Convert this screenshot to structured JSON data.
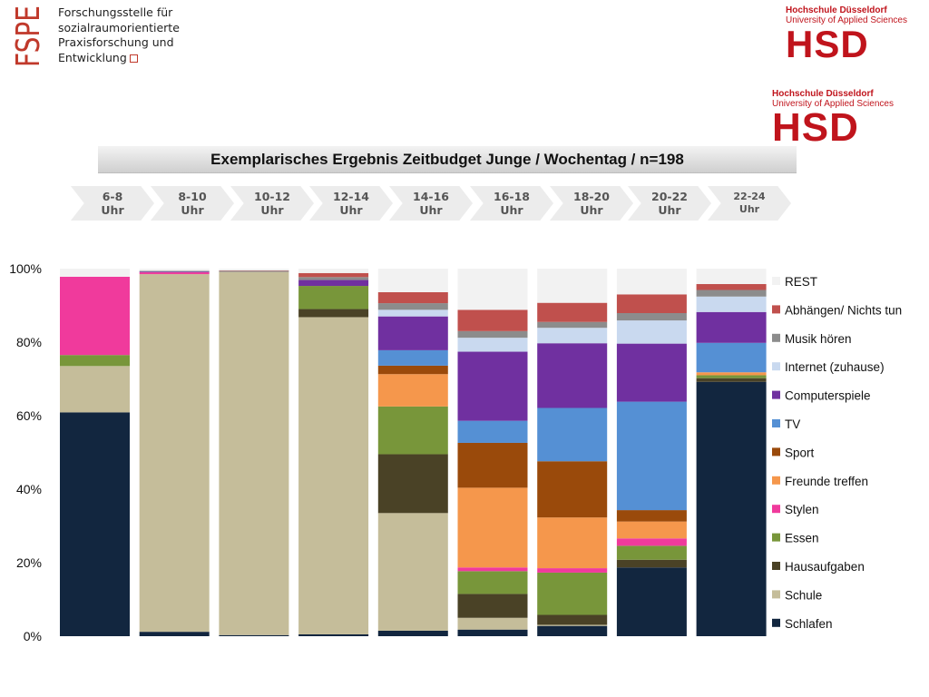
{
  "logos": {
    "espe_mark": "FSPE",
    "espe_lines": [
      "Forschungsstelle für",
      "sozialraumorientierte",
      "Praxisforschung und",
      "Entwicklung"
    ],
    "hsd_line1": "Hochschule Düsseldorf",
    "hsd_line2": "University of Applied Sciences",
    "hsd_word": "HSD"
  },
  "title": "Exemplarisches Ergebnis Zeitbudget Junge / Wochentag / n=198",
  "time_slots": [
    {
      "time": "6-8",
      "unit": "Uhr"
    },
    {
      "time": "8-10",
      "unit": "Uhr"
    },
    {
      "time": "10-12",
      "unit": "Uhr"
    },
    {
      "time": "12-14",
      "unit": "Uhr"
    },
    {
      "time": "14-16",
      "unit": "Uhr"
    },
    {
      "time": "16-18",
      "unit": "Uhr"
    },
    {
      "time": "18-20",
      "unit": "Uhr"
    },
    {
      "time": "20-22",
      "unit": "Uhr"
    },
    {
      "time": "22-24",
      "unit": "Uhr"
    }
  ],
  "chart_data": {
    "type": "bar",
    "stacked": true,
    "title": "",
    "xlabel": "",
    "ylabel": "",
    "ylim": [
      0,
      100
    ],
    "y_ticks": [
      "0%",
      "20%",
      "40%",
      "60%",
      "80%",
      "100%"
    ],
    "y_tick_values": [
      0,
      20,
      40,
      60,
      80,
      100
    ],
    "categories": [
      "6-8 Uhr",
      "8-10 Uhr",
      "10-12 Uhr",
      "12-14 Uhr",
      "14-16 Uhr",
      "16-18 Uhr",
      "18-20 Uhr",
      "20-22 Uhr",
      "22-24 Uhr"
    ],
    "legend_position": "right",
    "grid": false,
    "series": [
      {
        "name": "Schlafen",
        "color": "#12263f",
        "values": [
          60.9,
          1.2,
          0.3,
          0.5,
          1.5,
          1.8,
          2.8,
          18.7,
          69.2
        ]
      },
      {
        "name": "Schule",
        "color": "#c5bd9a",
        "values": [
          12.6,
          97.3,
          98.8,
          86.3,
          32.0,
          3.2,
          0.3,
          0.0,
          0.0
        ]
      },
      {
        "name": "Hausaufgaben",
        "color": "#4a4226",
        "values": [
          0.0,
          0.0,
          0.0,
          2.2,
          16.0,
          6.5,
          2.7,
          2.1,
          1.0
        ]
      },
      {
        "name": "Essen",
        "color": "#78963a",
        "values": [
          3.0,
          0.0,
          0.0,
          6.3,
          13.0,
          6.2,
          11.5,
          3.8,
          0.8
        ]
      },
      {
        "name": "Stylen",
        "color": "#f03a9c",
        "values": [
          21.3,
          0.5,
          0.0,
          0.0,
          0.0,
          1.0,
          1.2,
          2.0,
          0.0
        ]
      },
      {
        "name": "Freunde treffen",
        "color": "#f5974c",
        "values": [
          0.0,
          0.0,
          0.0,
          0.0,
          8.8,
          21.7,
          13.8,
          4.6,
          0.8
        ]
      },
      {
        "name": "Sport",
        "color": "#9a4a0b",
        "values": [
          0.0,
          0.0,
          0.0,
          0.0,
          2.3,
          12.2,
          15.3,
          3.1,
          0.0
        ]
      },
      {
        "name": "TV",
        "color": "#5590d4",
        "values": [
          0.0,
          0.0,
          0.0,
          0.0,
          4.2,
          6.0,
          14.5,
          29.5,
          8.0
        ]
      },
      {
        "name": "Computerspiele",
        "color": "#7030a0",
        "values": [
          0.0,
          0.2,
          0.0,
          1.6,
          9.2,
          18.8,
          17.6,
          15.8,
          8.4
        ]
      },
      {
        "name": "Internet (zuhause)",
        "color": "#c9d9ef",
        "values": [
          0.0,
          0.0,
          0.0,
          0.0,
          1.8,
          3.8,
          4.2,
          6.3,
          4.2
        ]
      },
      {
        "name": "Musik hören",
        "color": "#8c8c8c",
        "values": [
          0.0,
          0.2,
          0.3,
          0.8,
          1.8,
          1.8,
          1.6,
          2.0,
          1.8
        ]
      },
      {
        "name": "Abhängen/ Nichts tun",
        "color": "#c0504d",
        "values": [
          0.0,
          0.0,
          0.1,
          1.1,
          3.0,
          5.8,
          5.2,
          5.1,
          1.6
        ]
      },
      {
        "name": "REST",
        "color": "#f2f2f2",
        "values": [
          2.2,
          0.6,
          0.5,
          1.2,
          6.4,
          11.2,
          9.3,
          7.0,
          4.2
        ]
      }
    ]
  }
}
